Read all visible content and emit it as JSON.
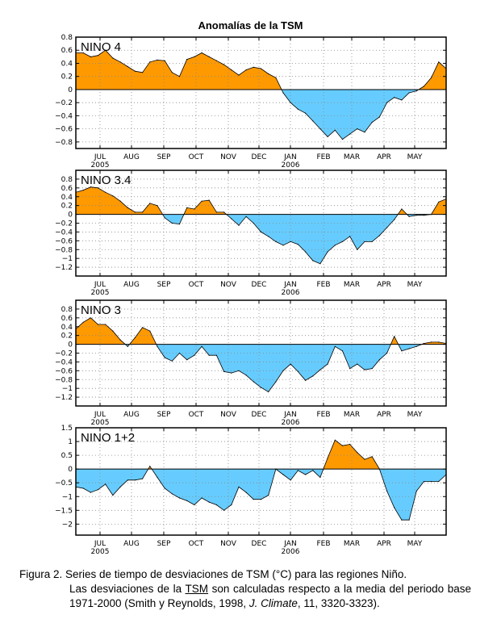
{
  "title": "Anomalías de la TSM",
  "months": [
    "JUL",
    "AUG",
    "SEP",
    "OCT",
    "NOV",
    "DEC",
    "JAN",
    "FEB",
    "MAR",
    "APR",
    "MAY"
  ],
  "year_labels": [
    {
      "month": "JUL",
      "year": "2005"
    },
    {
      "month": "JAN",
      "year": "2006"
    }
  ],
  "colors": {
    "positive": "#FF9900",
    "negative": "#66CCFF",
    "line": "#000000",
    "grid": "#888888"
  },
  "caption": {
    "line1": "Figura 2.  Series de tiempo de desviaciones de TSM (°C)   para las regiones Niño.",
    "part_a": "Las desviaciones de la ",
    "tsm": "TSM",
    "part_b": " son  calculadas   respecto a  la  media del periodo base 1971-2000 (Smith y Reynolds, 1998, ",
    "journal": "J. Climate",
    "part_c": ", 11, 3320-3323)."
  },
  "chart_data": [
    {
      "type": "area",
      "title": "NINO 4",
      "xlabel": "",
      "ylabel": "",
      "ylim": [
        -0.9,
        0.8
      ],
      "yticks": [
        0.8,
        0.6,
        0.4,
        0.2,
        0,
        -0.2,
        -0.4,
        -0.6,
        -0.8
      ],
      "ytick_labels": [
        "0.8",
        "0.6",
        "0.4",
        "0.2",
        "0",
        "−0.2",
        "−0.4",
        "−0.6",
        "−0.8"
      ],
      "x": [
        0,
        1,
        2,
        3,
        4,
        5,
        6,
        7,
        8,
        9,
        10,
        11,
        12,
        13,
        14,
        15,
        16,
        17,
        18,
        19,
        20,
        21,
        22,
        23,
        24,
        25,
        26,
        27,
        28,
        29,
        30,
        31,
        32,
        33,
        34,
        35,
        36,
        37,
        38,
        39,
        40,
        41,
        42,
        43,
        44,
        45,
        46,
        47,
        48,
        49,
        50
      ],
      "values": [
        0.56,
        0.56,
        0.5,
        0.52,
        0.6,
        0.48,
        0.42,
        0.35,
        0.28,
        0.26,
        0.42,
        0.45,
        0.44,
        0.26,
        0.2,
        0.46,
        0.5,
        0.56,
        0.5,
        0.44,
        0.38,
        0.3,
        0.22,
        0.3,
        0.34,
        0.32,
        0.24,
        0.18,
        -0.05,
        -0.2,
        -0.3,
        -0.36,
        -0.48,
        -0.6,
        -0.72,
        -0.62,
        -0.76,
        -0.68,
        -0.6,
        -0.65,
        -0.5,
        -0.42,
        -0.2,
        -0.12,
        -0.16,
        -0.05,
        -0.02,
        0.05,
        0.18,
        0.42,
        0.32
      ]
    },
    {
      "type": "area",
      "title": "NINO 3.4",
      "xlabel": "",
      "ylabel": "",
      "ylim": [
        -1.4,
        1.0
      ],
      "yticks": [
        0.8,
        0.6,
        0.4,
        0.2,
        0,
        -0.2,
        -0.4,
        -0.6,
        -0.8,
        -1,
        -1.2
      ],
      "ytick_labels": [
        "0.8",
        "0.6",
        "0.4",
        "0.2",
        "0",
        "−0.2",
        "−0.4",
        "−0.6",
        "−0.8",
        "−1",
        "−1.2"
      ],
      "x": [
        0,
        1,
        2,
        3,
        4,
        5,
        6,
        7,
        8,
        9,
        10,
        11,
        12,
        13,
        14,
        15,
        16,
        17,
        18,
        19,
        20,
        21,
        22,
        23,
        24,
        25,
        26,
        27,
        28,
        29,
        30,
        31,
        32,
        33,
        34,
        35,
        36,
        37,
        38,
        39,
        40,
        41,
        42,
        43,
        44,
        45,
        46,
        47,
        48,
        49,
        50
      ],
      "values": [
        0.5,
        0.55,
        0.62,
        0.6,
        0.5,
        0.42,
        0.3,
        0.15,
        0.05,
        0.05,
        0.25,
        0.2,
        -0.08,
        -0.2,
        -0.22,
        0.15,
        0.12,
        0.3,
        0.32,
        0.05,
        0.05,
        -0.1,
        -0.25,
        -0.05,
        -0.2,
        -0.4,
        -0.5,
        -0.62,
        -0.7,
        -0.62,
        -0.68,
        -0.85,
        -1.05,
        -1.12,
        -0.85,
        -0.7,
        -0.62,
        -0.5,
        -0.8,
        -0.62,
        -0.62,
        -0.48,
        -0.3,
        -0.12,
        0.12,
        -0.05,
        -0.02,
        -0.02,
        0.0,
        0.28,
        0.35
      ]
    },
    {
      "type": "area",
      "title": "NINO 3",
      "xlabel": "",
      "ylabel": "",
      "ylim": [
        -1.4,
        1.0
      ],
      "yticks": [
        0.8,
        0.6,
        0.4,
        0.2,
        0,
        -0.2,
        -0.4,
        -0.6,
        -0.8,
        -1,
        -1.2
      ],
      "ytick_labels": [
        "0.8",
        "0.6",
        "0.4",
        "0.2",
        "0",
        "−0.2",
        "−0.4",
        "−0.6",
        "−0.8",
        "−1",
        "−1.2"
      ],
      "x": [
        0,
        1,
        2,
        3,
        4,
        5,
        6,
        7,
        8,
        9,
        10,
        11,
        12,
        13,
        14,
        15,
        16,
        17,
        18,
        19,
        20,
        21,
        22,
        23,
        24,
        25,
        26,
        27,
        28,
        29,
        30,
        31,
        32,
        33,
        34,
        35,
        36,
        37,
        38,
        39,
        40,
        41,
        42,
        43,
        44,
        45,
        46,
        47,
        48,
        49,
        50
      ],
      "values": [
        0.35,
        0.5,
        0.6,
        0.45,
        0.45,
        0.3,
        0.1,
        -0.05,
        0.15,
        0.38,
        0.3,
        -0.05,
        -0.3,
        -0.38,
        -0.2,
        -0.35,
        -0.25,
        -0.05,
        -0.25,
        -0.25,
        -0.62,
        -0.65,
        -0.6,
        -0.7,
        -0.85,
        -0.98,
        -1.08,
        -0.85,
        -0.6,
        -0.45,
        -0.62,
        -0.82,
        -0.72,
        -0.58,
        -0.45,
        -0.05,
        -0.15,
        -0.55,
        -0.45,
        -0.58,
        -0.55,
        -0.35,
        -0.2,
        0.18,
        -0.15,
        -0.1,
        -0.05,
        0.02,
        0.05,
        0.05,
        0.02
      ]
    },
    {
      "type": "area",
      "title": "NINO 1+2",
      "xlabel": "",
      "ylabel": "",
      "ylim": [
        -2.4,
        1.5
      ],
      "yticks": [
        1.5,
        1,
        0.5,
        0,
        -0.5,
        -1,
        -1.5,
        -2
      ],
      "ytick_labels": [
        "1.5",
        "1",
        "0.5",
        "0",
        "−0.5",
        "−1",
        "−1.5",
        "−2"
      ],
      "x": [
        0,
        1,
        2,
        3,
        4,
        5,
        6,
        7,
        8,
        9,
        10,
        11,
        12,
        13,
        14,
        15,
        16,
        17,
        18,
        19,
        20,
        21,
        22,
        23,
        24,
        25,
        26,
        27,
        28,
        29,
        30,
        31,
        32,
        33,
        34,
        35,
        36,
        37,
        38,
        39,
        40,
        41,
        42,
        43,
        44,
        45,
        46,
        47,
        48,
        49,
        50
      ],
      "values": [
        -0.65,
        -0.7,
        -0.85,
        -0.75,
        -0.55,
        -0.95,
        -0.65,
        -0.4,
        -0.4,
        -0.35,
        0.1,
        -0.3,
        -0.7,
        -0.9,
        -1.05,
        -1.15,
        -1.3,
        -1.05,
        -1.2,
        -1.3,
        -1.5,
        -1.3,
        -0.65,
        -0.85,
        -1.1,
        -1.1,
        -0.95,
        0.0,
        -0.2,
        -0.4,
        -0.05,
        -0.2,
        -0.05,
        -0.3,
        0.4,
        1.05,
        0.85,
        0.9,
        0.6,
        0.35,
        0.45,
        0.0,
        -0.8,
        -1.4,
        -1.85,
        -1.85,
        -0.8,
        -0.45,
        -0.45,
        -0.45,
        -0.2
      ]
    }
  ]
}
